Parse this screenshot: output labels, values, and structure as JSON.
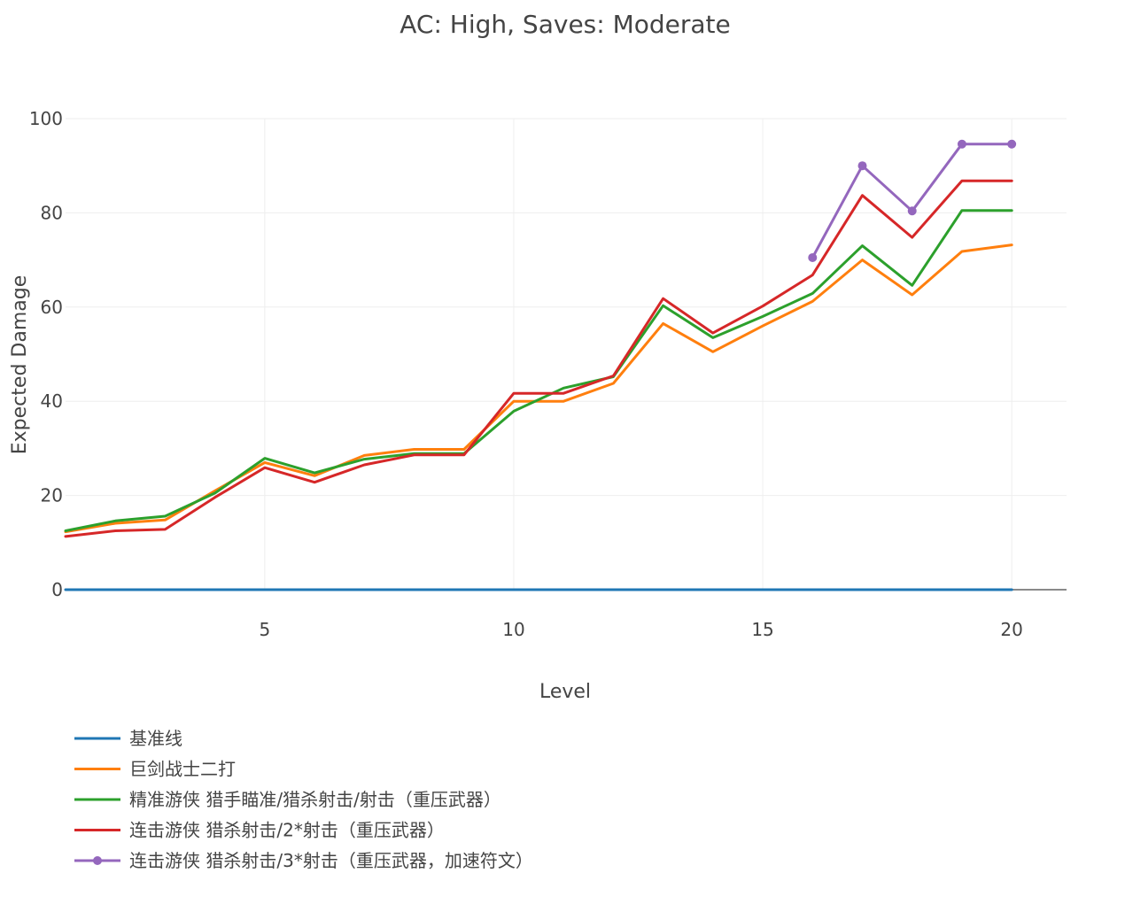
{
  "chart_data": {
    "type": "line",
    "title": "AC: High, Saves: Moderate",
    "xlabel": "Level",
    "ylabel": "Expected Damage",
    "xlim": [
      1,
      21.1
    ],
    "ylim": [
      0,
      100
    ],
    "x_ticks": [
      5,
      10,
      15,
      20
    ],
    "y_ticks": [
      0,
      20,
      40,
      60,
      80,
      100
    ],
    "grid": true,
    "legend_position": "bottom-left",
    "series": [
      {
        "name": "基准线",
        "color": "#1f77b4",
        "markers": false,
        "x": [
          1,
          2,
          3,
          4,
          5,
          6,
          7,
          8,
          9,
          10,
          11,
          12,
          13,
          14,
          15,
          16,
          17,
          18,
          19,
          20
        ],
        "y": [
          0,
          0,
          0,
          0,
          0,
          0,
          0,
          0,
          0,
          0,
          0,
          0,
          0,
          0,
          0,
          0,
          0,
          0,
          0,
          0
        ]
      },
      {
        "name": "巨剑战士二打",
        "color": "#ff7f0e",
        "markers": false,
        "x": [
          1,
          2,
          3,
          4,
          5,
          6,
          7,
          8,
          9,
          10,
          11,
          12,
          13,
          14,
          15,
          16,
          17,
          18,
          19,
          20
        ],
        "y": [
          12.3,
          14.1,
          14.8,
          21.0,
          27.0,
          24.2,
          28.5,
          29.8,
          29.8,
          40.0,
          40.0,
          43.8,
          56.5,
          50.5,
          56.0,
          61.2,
          70.0,
          62.6,
          71.8,
          73.2
        ]
      },
      {
        "name": "精准游侠 猎手瞄准/猎杀射击/射击（重压武器）",
        "color": "#2ca02c",
        "markers": false,
        "x": [
          1,
          2,
          3,
          4,
          5,
          6,
          7,
          8,
          9,
          10,
          11,
          12,
          13,
          14,
          15,
          16,
          17,
          18,
          19,
          20
        ],
        "y": [
          12.5,
          14.6,
          15.6,
          20.5,
          27.9,
          24.8,
          27.7,
          28.9,
          28.9,
          37.9,
          42.8,
          45.2,
          60.3,
          53.5,
          58.0,
          62.9,
          73.0,
          64.6,
          80.5,
          80.5
        ]
      },
      {
        "name": "连击游侠 猎杀射击/2*射击（重压武器）",
        "color": "#d62728",
        "markers": false,
        "x": [
          1,
          2,
          3,
          4,
          5,
          6,
          7,
          8,
          9,
          10,
          11,
          12,
          13,
          14,
          15,
          16,
          17,
          18,
          19,
          20
        ],
        "y": [
          11.3,
          12.5,
          12.8,
          19.6,
          25.9,
          22.8,
          26.5,
          28.6,
          28.6,
          41.7,
          41.7,
          45.4,
          61.8,
          54.5,
          60.2,
          66.8,
          83.7,
          74.8,
          86.8,
          86.8
        ]
      },
      {
        "name": "连击游侠 猎杀射击/3*射击（重压武器，加速符文）",
        "color": "#9467bd",
        "markers": true,
        "x": [
          16,
          17,
          18,
          19,
          20
        ],
        "y": [
          70.5,
          90.0,
          80.4,
          94.6,
          94.6
        ]
      }
    ]
  }
}
